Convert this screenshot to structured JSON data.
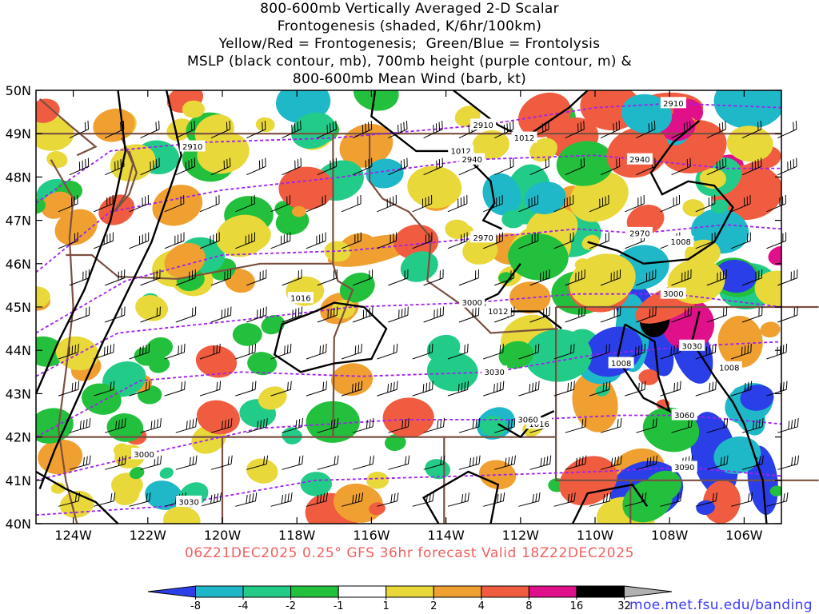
{
  "title_lines": [
    "800-600mb Vertically Averaged 2-D Scalar",
    "Frontogenesis (shaded, K/6hr/100km)",
    "Yellow/Red = Frontogenesis;  Green/Blue = Frontolysis",
    "MSLP (black contour, mb), 700mb height (purple contour, m) &",
    "800-600mb Mean Wind (barb, kt)"
  ],
  "lat_labels": [
    "50N",
    "49N",
    "48N",
    "47N",
    "46N",
    "45N",
    "44N",
    "43N",
    "42N",
    "41N",
    "40N"
  ],
  "lon_labels": [
    "124W",
    "122W",
    "120W",
    "118W",
    "116W",
    "114W",
    "112W",
    "110W",
    "108W",
    "106W"
  ],
  "map_extent": {
    "lon_min": -125,
    "lon_max": -105,
    "lat_min": 40,
    "lat_max": 50
  },
  "caption": "06Z21DEC2025 0.25° GFS 36hr forecast Valid 18Z22DEC2025",
  "credit": "moe.met.fsu.edu/banding",
  "colorbar": {
    "bins": [
      {
        "color": "#2b3fe8"
      },
      {
        "color": "#1fb8c8"
      },
      {
        "color": "#22cc88"
      },
      {
        "color": "#22c03c"
      },
      {
        "color": "#ffffff"
      },
      {
        "color": "#e8d83a"
      },
      {
        "color": "#f0a030"
      },
      {
        "color": "#f05c40"
      },
      {
        "color": "#e0108a"
      },
      {
        "color": "#000000"
      },
      {
        "color": "#b0b0b0"
      }
    ],
    "tick_labels": [
      "-8",
      "-4",
      "-2",
      "-1",
      "1",
      "2",
      "4",
      "8",
      "16",
      "32"
    ]
  },
  "mslp_labels": [
    {
      "text": "1012",
      "lon": -113.6,
      "lat": 48.6
    },
    {
      "text": "1012",
      "lon": -111.9,
      "lat": 48.9
    },
    {
      "text": "1016",
      "lon": -117.9,
      "lat": 45.2
    },
    {
      "text": "1012",
      "lon": -112.6,
      "lat": 44.9
    },
    {
      "text": "1016",
      "lon": -111.5,
      "lat": 42.3
    },
    {
      "text": "1008",
      "lon": -107.7,
      "lat": 46.5
    },
    {
      "text": "1008",
      "lon": -109.3,
      "lat": 43.7
    },
    {
      "text": "1008",
      "lon": -106.4,
      "lat": 43.6
    }
  ],
  "height_labels": [
    {
      "text": "2910",
      "lon": -120.8,
      "lat": 48.7
    },
    {
      "text": "2910",
      "lon": -113.0,
      "lat": 49.2
    },
    {
      "text": "2910",
      "lon": -107.9,
      "lat": 49.7
    },
    {
      "text": "2940",
      "lon": -113.3,
      "lat": 48.4
    },
    {
      "text": "2940",
      "lon": -108.8,
      "lat": 48.4
    },
    {
      "text": "2970",
      "lon": -113.0,
      "lat": 46.6
    },
    {
      "text": "2970",
      "lon": -108.8,
      "lat": 46.7
    },
    {
      "text": "3000",
      "lon": -113.3,
      "lat": 45.1
    },
    {
      "text": "3000",
      "lon": -107.9,
      "lat": 45.3
    },
    {
      "text": "3030",
      "lon": -112.7,
      "lat": 43.5
    },
    {
      "text": "3030",
      "lon": -107.4,
      "lat": 44.1
    },
    {
      "text": "3060",
      "lon": -111.8,
      "lat": 42.4
    },
    {
      "text": "3060",
      "lon": -107.6,
      "lat": 42.5
    },
    {
      "text": "3090",
      "lon": -107.6,
      "lat": 41.3
    },
    {
      "text": "3000",
      "lon": -122.1,
      "lat": 41.6
    },
    {
      "text": "3030",
      "lon": -120.9,
      "lat": 40.5
    }
  ],
  "colors": {
    "height_contour": "#a020f0",
    "mslp_contour": "#000000",
    "borders": "#7a5040",
    "caption": "#f06060",
    "credit": "#3a3aff"
  }
}
